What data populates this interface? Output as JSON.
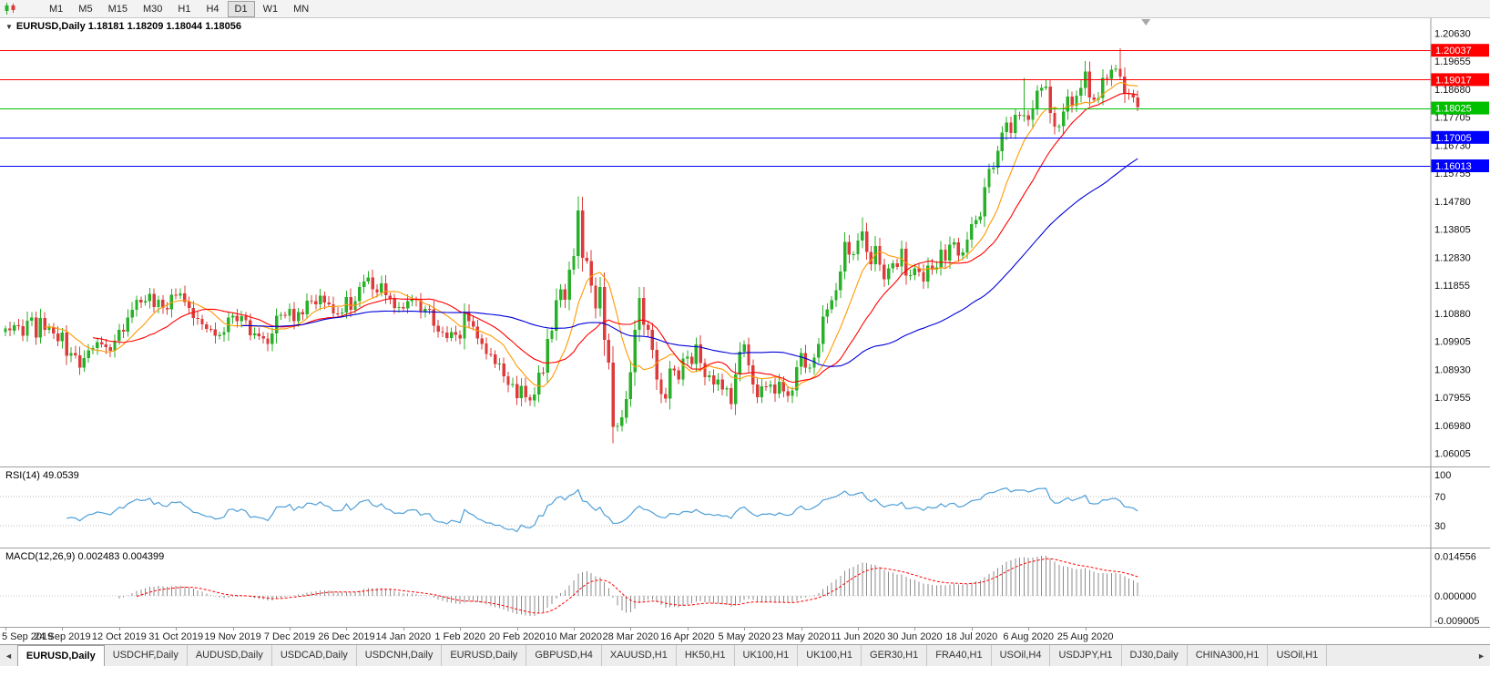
{
  "toolbar": {
    "timeframes": [
      "M1",
      "M5",
      "M15",
      "M30",
      "H1",
      "H4",
      "D1",
      "W1",
      "MN"
    ],
    "active_timeframe": "D1"
  },
  "main_chart": {
    "title": "EURUSD,Daily 1.18181 1.18209 1.18044 1.18056",
    "symbol": "EURUSD",
    "period": "Daily",
    "ohlc": {
      "open": "1.18181",
      "high": "1.18209",
      "low": "1.18044",
      "close": "1.18056"
    },
    "y_axis_labels": [
      "1.20630",
      "1.19655",
      "1.18680",
      "1.17705",
      "1.16730",
      "1.15755",
      "1.14780",
      "1.13805",
      "1.12830",
      "1.11855",
      "1.10880",
      "1.09905",
      "1.08930",
      "1.07955",
      "1.06980",
      "1.06005"
    ],
    "price_lines": [
      {
        "price": 1.20037,
        "label": "1.20037",
        "color": "#ff0000",
        "type": "resistance"
      },
      {
        "price": 1.19017,
        "label": "1.19017",
        "color": "#ff0000",
        "type": "resistance"
      },
      {
        "price": 1.18025,
        "label": "1.18025",
        "color": "#00c000",
        "type": "current-price"
      },
      {
        "price": 1.17005,
        "label": "1.17005",
        "color": "#0000ff",
        "type": "support"
      },
      {
        "price": 1.16013,
        "label": "1.16013",
        "color": "#0000ff",
        "type": "support"
      }
    ]
  },
  "rsi_panel": {
    "label": "RSI(14) 49.0539",
    "axis_labels": [
      "100",
      "70",
      "30"
    ],
    "level_lines": [
      70,
      30
    ]
  },
  "macd_panel": {
    "label": "MACD(12,26,9) 0.002483 0.004399",
    "axis_labels": [
      "0.014556",
      "0.000000",
      "-0.009005"
    ]
  },
  "x_axis_labels": [
    "5 Sep 2019",
    "24 Sep 2019",
    "12 Oct 2019",
    "31 Oct 2019",
    "19 Nov 2019",
    "7 Dec 2019",
    "26 Dec 2019",
    "14 Jan 2020",
    "1 Feb 2020",
    "20 Feb 2020",
    "10 Mar 2020",
    "28 Mar 2020",
    "16 Apr 2020",
    "5 May 2020",
    "23 May 2020",
    "11 Jun 2020",
    "30 Jun 2020",
    "18 Jul 2020",
    "6 Aug 2020",
    "25 Aug 2020"
  ],
  "bottom_tabs": {
    "active_index": 0,
    "left_arrow": "◄",
    "right_arrow": "►",
    "tabs": [
      "EURUSD,Daily",
      "USDCHF,Daily",
      "AUDUSD,Daily",
      "USDCAD,Daily",
      "USDCNH,Daily",
      "EURUSD,Daily",
      "GBPUSD,H4",
      "XAUUSD,H1",
      "HK50,H1",
      "UK100,H1",
      "UK100,H1",
      "GER30,H1",
      "FRA40,H1",
      "USOil,H4",
      "USDJPY,H1",
      "DJ30,Daily",
      "CHINA300,H1",
      "USOil,H1"
    ]
  },
  "colors": {
    "bull_candle": "#28b028",
    "bear_candle": "#dd3b3b",
    "rsi_line": "#4f9fd8",
    "macd_histogram": "#8c8c8c",
    "macd_signal": "#ff0000",
    "axis_text": "#111111",
    "badge_text": "#ffffff"
  },
  "chart_data": {
    "type": "candlestick",
    "symbol": "EURUSD",
    "timeframe": "Daily",
    "x_start": "5 Sep 2019",
    "x_end": "7 Sep 2020",
    "y_range": [
      1.058,
      1.209
    ],
    "closes": [
      1.1035,
      1.1028,
      1.1047,
      1.1043,
      1.1009,
      1.1062,
      1.1073,
      1.1003,
      1.1072,
      1.1031,
      1.104,
      1.1017,
      1.099,
      1.1021,
      1.094,
      1.095,
      1.0941,
      1.0899,
      1.0932,
      1.0959,
      1.0967,
      1.0988,
      1.098,
      1.097,
      1.0957,
      1.0993,
      1.103,
      1.1024,
      1.1073,
      1.11,
      1.1135,
      1.1125,
      1.113,
      1.1156,
      1.111,
      1.1135,
      1.1107,
      1.1102,
      1.1152,
      1.1149,
      1.1158,
      1.1128,
      1.1107,
      1.1072,
      1.1068,
      1.1049,
      1.1034,
      1.1032,
      1.1009,
      1.1013,
      1.1022,
      1.1073,
      1.1079,
      1.1061,
      1.1078,
      1.1064,
      1.1012,
      1.1017,
      1.1008,
      1.1,
      1.0981,
      1.1017,
      1.1079,
      1.1082,
      1.108,
      1.1103,
      1.106,
      1.1093,
      1.1085,
      1.1132,
      1.113,
      1.112,
      1.115,
      1.1125,
      1.1119,
      1.1088,
      1.1087,
      1.1091,
      1.1145,
      1.11,
      1.113,
      1.118,
      1.1199,
      1.1212,
      1.1172,
      1.116,
      1.1192,
      1.115,
      1.1139,
      1.1106,
      1.111,
      1.1105,
      1.1131,
      1.1136,
      1.1134,
      1.1093,
      1.1103,
      1.1102,
      1.1045,
      1.1024,
      1.1021,
      1.1002,
      1.1022,
      1.1013,
      1.1,
      1.1093,
      1.106,
      1.1042,
      1.1,
      1.0982,
      1.0946,
      1.0945,
      1.0911,
      1.0913,
      1.0868,
      1.0839,
      1.0842,
      1.0792,
      1.0836,
      1.0795,
      1.0785,
      1.0805,
      1.0882,
      1.0881,
      1.0998,
      1.1027,
      1.1133,
      1.1172,
      1.1135,
      1.124,
      1.1288,
      1.1446,
      1.1281,
      1.127,
      1.1184,
      1.1105,
      1.118,
      1.0995,
      1.0916,
      1.0692,
      1.0696,
      1.0725,
      1.0789,
      1.0883,
      1.103,
      1.1141,
      1.1048,
      1.1031,
      1.096,
      1.0857,
      1.0806,
      1.0791,
      1.0895,
      1.0889,
      1.0857,
      1.093,
      1.0936,
      1.0912,
      1.098,
      1.0914,
      1.0866,
      1.0872,
      1.084,
      1.0857,
      1.0822,
      1.0827,
      1.0772,
      1.0875,
      1.0955,
      1.098,
      1.0907,
      1.084,
      1.0795,
      1.0833,
      1.0832,
      1.084,
      1.0808,
      1.0849,
      1.0816,
      1.0801,
      1.082,
      1.0901,
      1.095,
      1.0898,
      1.0899,
      1.0934,
      1.0981,
      1.1077,
      1.1101,
      1.1134,
      1.1168,
      1.1233,
      1.1337,
      1.1292,
      1.1294,
      1.1341,
      1.1373,
      1.1301,
      1.1259,
      1.1323,
      1.1257,
      1.1206,
      1.1244,
      1.1262,
      1.125,
      1.1312,
      1.1219,
      1.122,
      1.1245,
      1.1232,
      1.1198,
      1.1254,
      1.1239,
      1.1248,
      1.131,
      1.1271,
      1.1327,
      1.1335,
      1.1289,
      1.13,
      1.1344,
      1.1398,
      1.1413,
      1.1425,
      1.1527,
      1.159,
      1.1595,
      1.1653,
      1.1718,
      1.1752,
      1.1715,
      1.1779,
      1.1778,
      1.1778,
      1.1762,
      1.1802,
      1.1863,
      1.1873,
      1.1878,
      1.1786,
      1.1738,
      1.174,
      1.179,
      1.1842,
      1.181,
      1.1845,
      1.1873,
      1.1929,
      1.184,
      1.1832,
      1.1838,
      1.1908,
      1.1905,
      1.1936,
      1.1939,
      1.1913,
      1.1853,
      1.185,
      1.1839,
      1.1806
    ],
    "wick_overrides": {
      "119": {
        "l": 1.0778
      },
      "131": {
        "h": 1.1495
      },
      "139": {
        "l": 1.0636
      },
      "196": {
        "h": 1.1422
      },
      "233": {
        "h": 1.1908
      },
      "247": {
        "h": 1.1966
      },
      "255": {
        "h": 1.2011
      }
    },
    "moving_averages": [
      {
        "period": 10,
        "color": "#ff9900"
      },
      {
        "period": 21,
        "color": "#ff0000"
      },
      {
        "period": 55,
        "color": "#0000d8"
      }
    ],
    "indicators": {
      "rsi": {
        "period": 14,
        "current": 49.0539
      },
      "macd": {
        "fast": 12,
        "slow": 26,
        "signal": 9,
        "current_macd": 0.002483,
        "current_signal": 0.004399
      }
    }
  }
}
